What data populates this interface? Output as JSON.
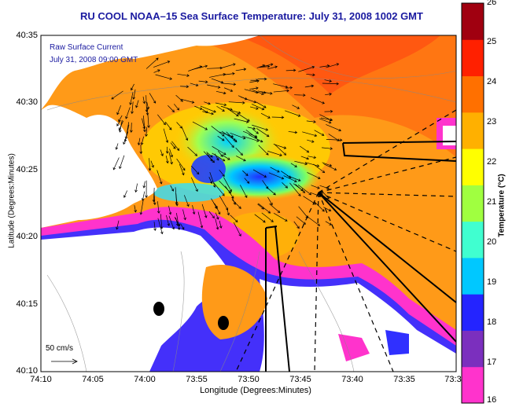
{
  "title": "RU COOL  NOAA–15  Sea Surface Temperature:  July 31, 2008 1002 GMT",
  "inset": {
    "line1": "Raw Surface Current",
    "line2": "July 31, 2008 09:00 GMT"
  },
  "axes": {
    "xlabel": "Longitude (Degrees:Minutes)",
    "ylabel": "Latitude (Degrees:Minutes)",
    "xticks": [
      "74:10",
      "74:05",
      "74:00",
      "73:55",
      "73:50",
      "73:45",
      "73:40",
      "73:35",
      "73:3"
    ],
    "yticks": [
      "40:35",
      "40:30",
      "40:25",
      "40:20",
      "40:15",
      "40:10"
    ]
  },
  "colorbar": {
    "label": "Temperature (°C)",
    "ticks": [
      "26",
      "25",
      "24",
      "23",
      "22",
      "21",
      "20",
      "19",
      "18",
      "17",
      "16"
    ],
    "colors": [
      "#ff33cc",
      "#7b2fbe",
      "#2424ff",
      "#00c8ff",
      "#40ffd0",
      "#a0ff40",
      "#ffff00",
      "#ffb000",
      "#ff7000",
      "#ff2000",
      "#a00010"
    ]
  },
  "reference_vector": "50 cm/s",
  "colors": {
    "title": "#1a1aa0",
    "land": "#ffffff",
    "warm": "#ffa020"
  }
}
